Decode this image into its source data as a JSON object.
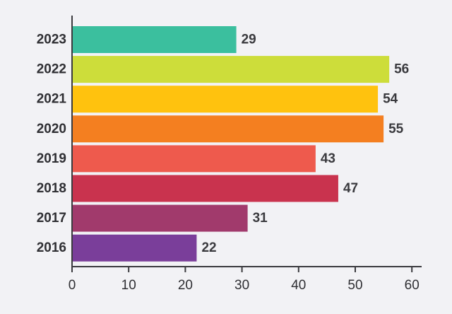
{
  "chart_data": {
    "type": "bar",
    "orientation": "horizontal",
    "title": "",
    "xlabel": "",
    "ylabel": "",
    "categories": [
      "2023",
      "2022",
      "2021",
      "2020",
      "2019",
      "2018",
      "2017",
      "2016"
    ],
    "values": [
      29,
      56,
      54,
      55,
      43,
      47,
      31,
      22
    ],
    "value_labels": [
      "29",
      "56",
      "54",
      "55",
      "43",
      "47",
      "31",
      "22"
    ],
    "colors": [
      "#3bbf9e",
      "#cddd3a",
      "#ffc20e",
      "#f47f20",
      "#ee5a4d",
      "#c9334e",
      "#a13a6c",
      "#7a3e9a"
    ],
    "xlim": [
      0,
      60
    ],
    "xticks": [
      "0",
      "10",
      "20",
      "30",
      "40",
      "50",
      "60"
    ],
    "grid": false,
    "legend": "none"
  }
}
